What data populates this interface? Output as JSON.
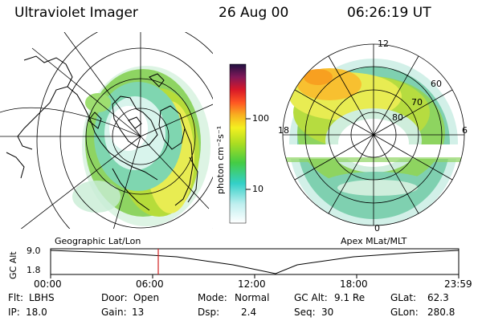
{
  "header": {
    "title": "Ultraviolet Imager",
    "date": "26 Aug 00",
    "time": "06:26:19 UT"
  },
  "colorbar": {
    "unit_label": "photon cm⁻²s⁻¹",
    "tick_100": "100",
    "tick_10": "10"
  },
  "left_panel": {
    "label": "Geographic Lat/Lon"
  },
  "right_panel": {
    "label": "Apex MLat/MLT",
    "mlt_labels": {
      "top": "12",
      "left": "18",
      "right": "6",
      "bottom": "0"
    },
    "mlat_labels": [
      "60",
      "70",
      "80"
    ]
  },
  "timeline": {
    "ylabel": "GC Alt",
    "y_ticks": [
      "9.0",
      "1.8"
    ],
    "x_ticks": [
      "00:00",
      "06:00",
      "12:00",
      "18:00",
      "23:59"
    ],
    "marker_time": "06:26"
  },
  "info": {
    "flt_label": "Flt:",
    "flt_value": "LBHS",
    "ip_label": "IP:",
    "ip_value": "18.0",
    "door_label": "Door:",
    "door_value": "Open",
    "gain_label": "Gain:",
    "gain_value": "13",
    "mode_label": "Mode:",
    "mode_value": "Normal",
    "dsp_label": "Dsp:",
    "dsp_value": "2.4",
    "gcalt_label": "GC Alt:",
    "gcalt_value": "9.1 Re",
    "seq_label": "Seq:",
    "seq_value": "30",
    "glat_label": "GLat:",
    "glat_value": "62.3",
    "glon_label": "GLon:",
    "glon_value": "280.8"
  }
}
